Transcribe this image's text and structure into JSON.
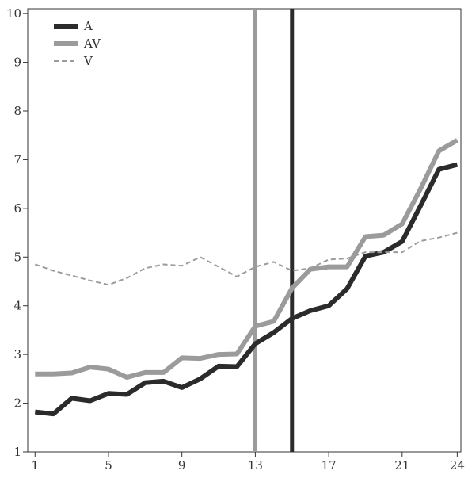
{
  "chart_data": {
    "type": "line",
    "x": [
      1,
      2,
      3,
      4,
      5,
      6,
      7,
      8,
      9,
      10,
      11,
      12,
      13,
      14,
      15,
      16,
      17,
      18,
      19,
      20,
      21,
      22,
      23,
      24
    ],
    "series": [
      {
        "name": "A",
        "color": "#2b2b2b",
        "style": "solid-thick",
        "values": [
          1.82,
          1.78,
          2.1,
          2.05,
          2.2,
          2.18,
          2.42,
          2.45,
          2.32,
          2.5,
          2.76,
          2.75,
          3.22,
          3.45,
          3.74,
          3.9,
          4.0,
          4.35,
          5.02,
          5.1,
          5.32,
          6.05,
          6.8,
          6.9
        ]
      },
      {
        "name": "AV",
        "color": "#9b9b9b",
        "style": "solid-thick",
        "values": [
          2.6,
          2.6,
          2.62,
          2.74,
          2.7,
          2.53,
          2.63,
          2.63,
          2.93,
          2.92,
          3.0,
          3.01,
          3.58,
          3.68,
          4.36,
          4.75,
          4.8,
          4.8,
          5.42,
          5.45,
          5.68,
          6.4,
          7.18,
          7.4
        ]
      },
      {
        "name": "V",
        "color": "#9b9b9b",
        "style": "dashed",
        "values": [
          4.85,
          4.72,
          4.62,
          4.52,
          4.43,
          4.57,
          4.77,
          4.85,
          4.82,
          5.0,
          4.8,
          4.6,
          4.8,
          4.9,
          4.72,
          4.77,
          4.95,
          4.97,
          5.1,
          5.1,
          5.1,
          5.33,
          5.4,
          5.5
        ]
      }
    ],
    "vertical_lines": [
      {
        "x": 13,
        "color": "#9b9b9b"
      },
      {
        "x": 15,
        "color": "#2b2b2b"
      }
    ],
    "x_ticks": [
      1,
      5,
      9,
      13,
      17,
      21,
      24
    ],
    "y_ticks": [
      1,
      2,
      3,
      4,
      5,
      6,
      7,
      8,
      9,
      10
    ],
    "xlim": [
      0.6,
      24.2
    ],
    "ylim": [
      1,
      10.1
    ],
    "legend_position": "top-left",
    "grid": false,
    "title": "",
    "xlabel": "",
    "ylabel": ""
  }
}
